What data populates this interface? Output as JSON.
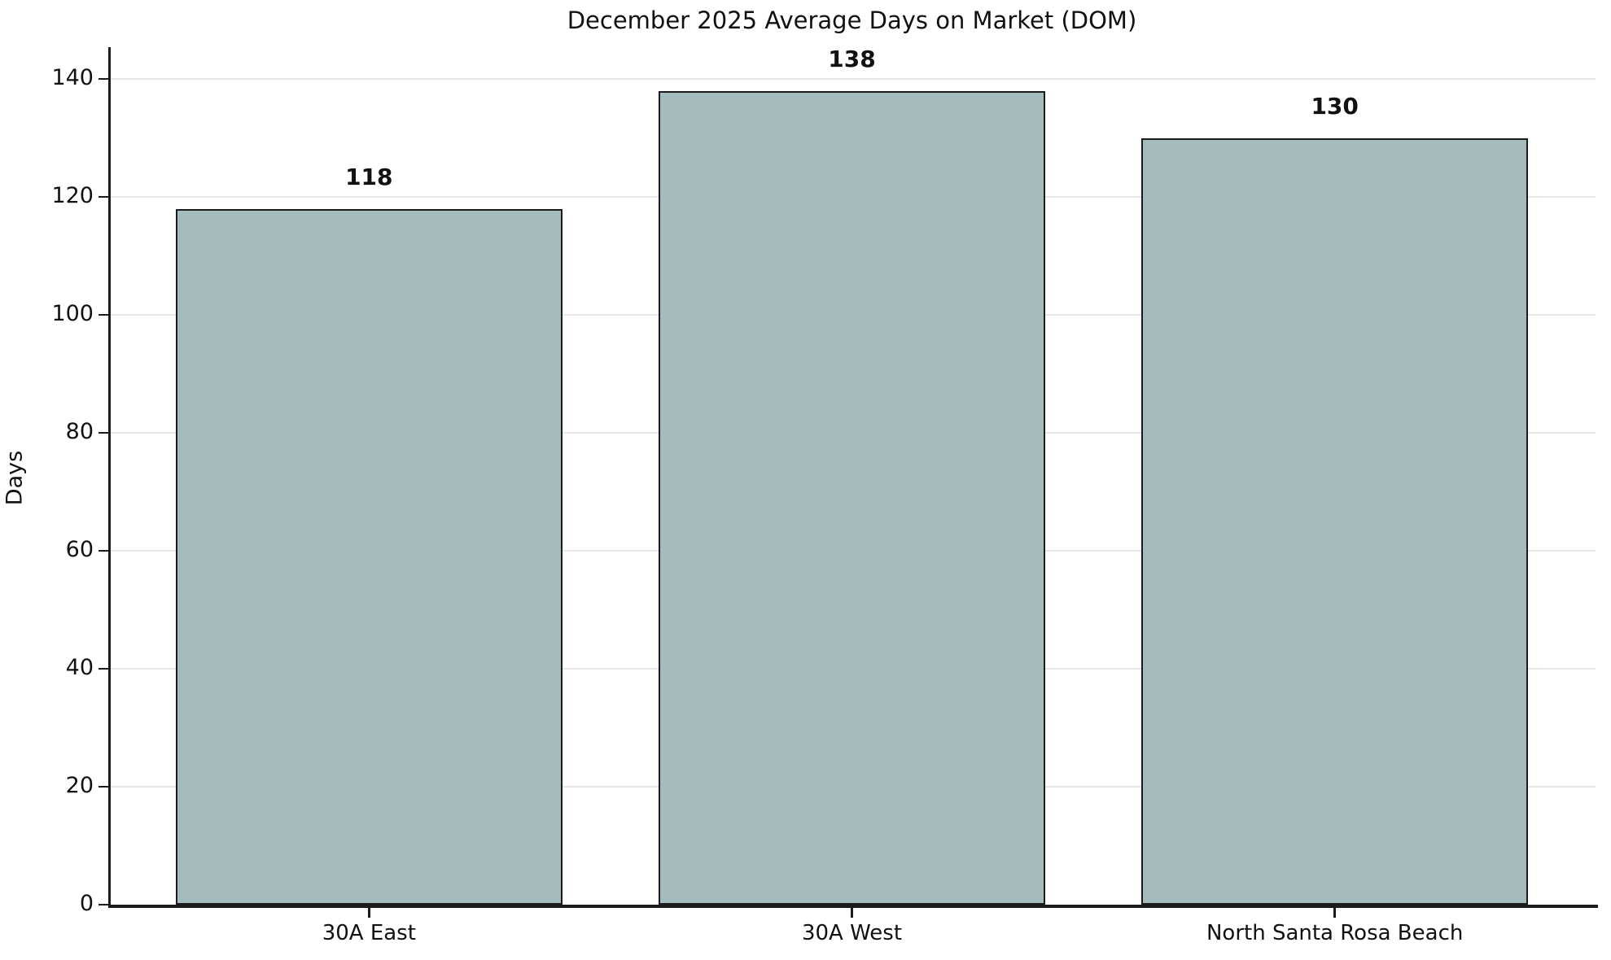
{
  "title": "December 2025 Average Days on Market (DOM)",
  "chart_data": {
    "type": "bar",
    "categories": [
      "30A East",
      "30A West",
      "North Santa Rosa Beach"
    ],
    "values": [
      118,
      138,
      130
    ],
    "value_labels": [
      "118",
      "138",
      "130"
    ],
    "title": "December 2025 Average Days on Market (DOM)",
    "xlabel": "",
    "ylabel": "Days",
    "ylim": [
      0,
      145
    ],
    "yticks": [
      0,
      20,
      40,
      60,
      80,
      100,
      120,
      140
    ],
    "ytick_labels": [
      "0",
      "20",
      "40",
      "60",
      "80",
      "100",
      "120",
      "140"
    ],
    "grid": "horizontal",
    "legend": "none",
    "bar_color": "#a5bcbd",
    "bar_edge_color": "#1c1c1c",
    "grid_color": "#e7e7e7"
  }
}
